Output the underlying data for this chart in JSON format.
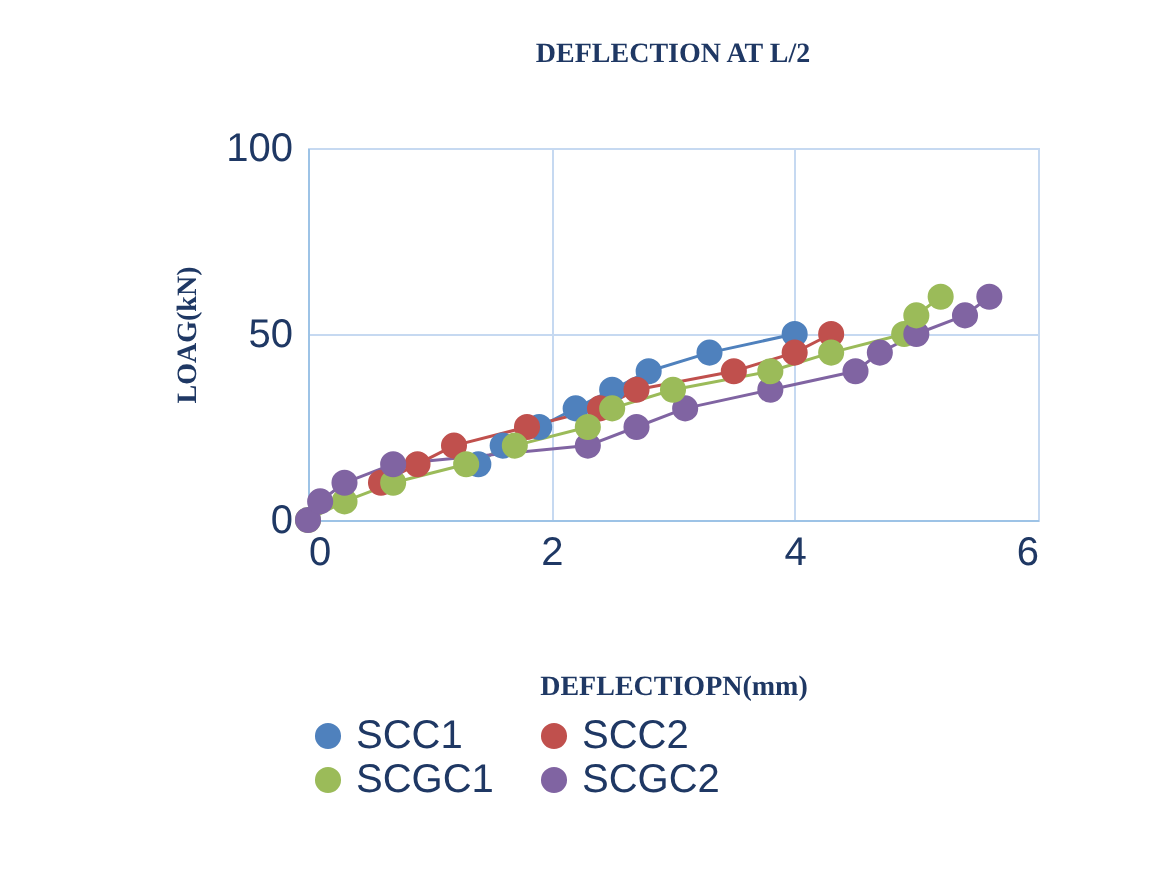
{
  "chart_data": {
    "type": "line",
    "title": "DEFLECTION  AT L/2",
    "xlabel": "DEFLECTIOPN(mm)",
    "ylabel": "LOAG(kN)",
    "xlim": [
      0,
      6
    ],
    "xticks": [
      0,
      2,
      4,
      6
    ],
    "ylim": [
      0,
      100
    ],
    "yticks": [
      0,
      50,
      100
    ],
    "grid": true,
    "marker": "circle",
    "legend": "bottom",
    "series": [
      {
        "name": "SCC1",
        "color": "#4f81bd",
        "x": [
          1.4,
          1.6,
          1.9,
          2.2,
          2.5,
          2.8,
          3.3,
          4.0
        ],
        "values": [
          15,
          20,
          25,
          30,
          35,
          40,
          45,
          50
        ]
      },
      {
        "name": "SCC2",
        "color": "#c0504d",
        "x": [
          0.6,
          0.9,
          1.2,
          1.8,
          2.4,
          2.7,
          3.5,
          4.0,
          4.3
        ],
        "values": [
          10,
          15,
          20,
          25,
          30,
          35,
          40,
          45,
          50
        ]
      },
      {
        "name": "SCGC1",
        "color": "#9bbb59",
        "x": [
          0,
          0.3,
          0.7,
          1.3,
          1.7,
          2.3,
          2.5,
          3.0,
          3.8,
          4.3,
          4.9,
          5.0,
          5.2
        ],
        "values": [
          0,
          5,
          10,
          15,
          20,
          25,
          30,
          35,
          40,
          45,
          50,
          55,
          60
        ]
      },
      {
        "name": "SCGC2",
        "color": "#8064a2",
        "x": [
          0,
          0.1,
          0.3,
          0.7,
          2.3,
          2.7,
          3.1,
          3.8,
          4.5,
          4.7,
          5.0,
          5.4,
          5.6
        ],
        "values": [
          0,
          5,
          10,
          15,
          20,
          25,
          30,
          35,
          40,
          45,
          50,
          55,
          60
        ]
      }
    ]
  }
}
